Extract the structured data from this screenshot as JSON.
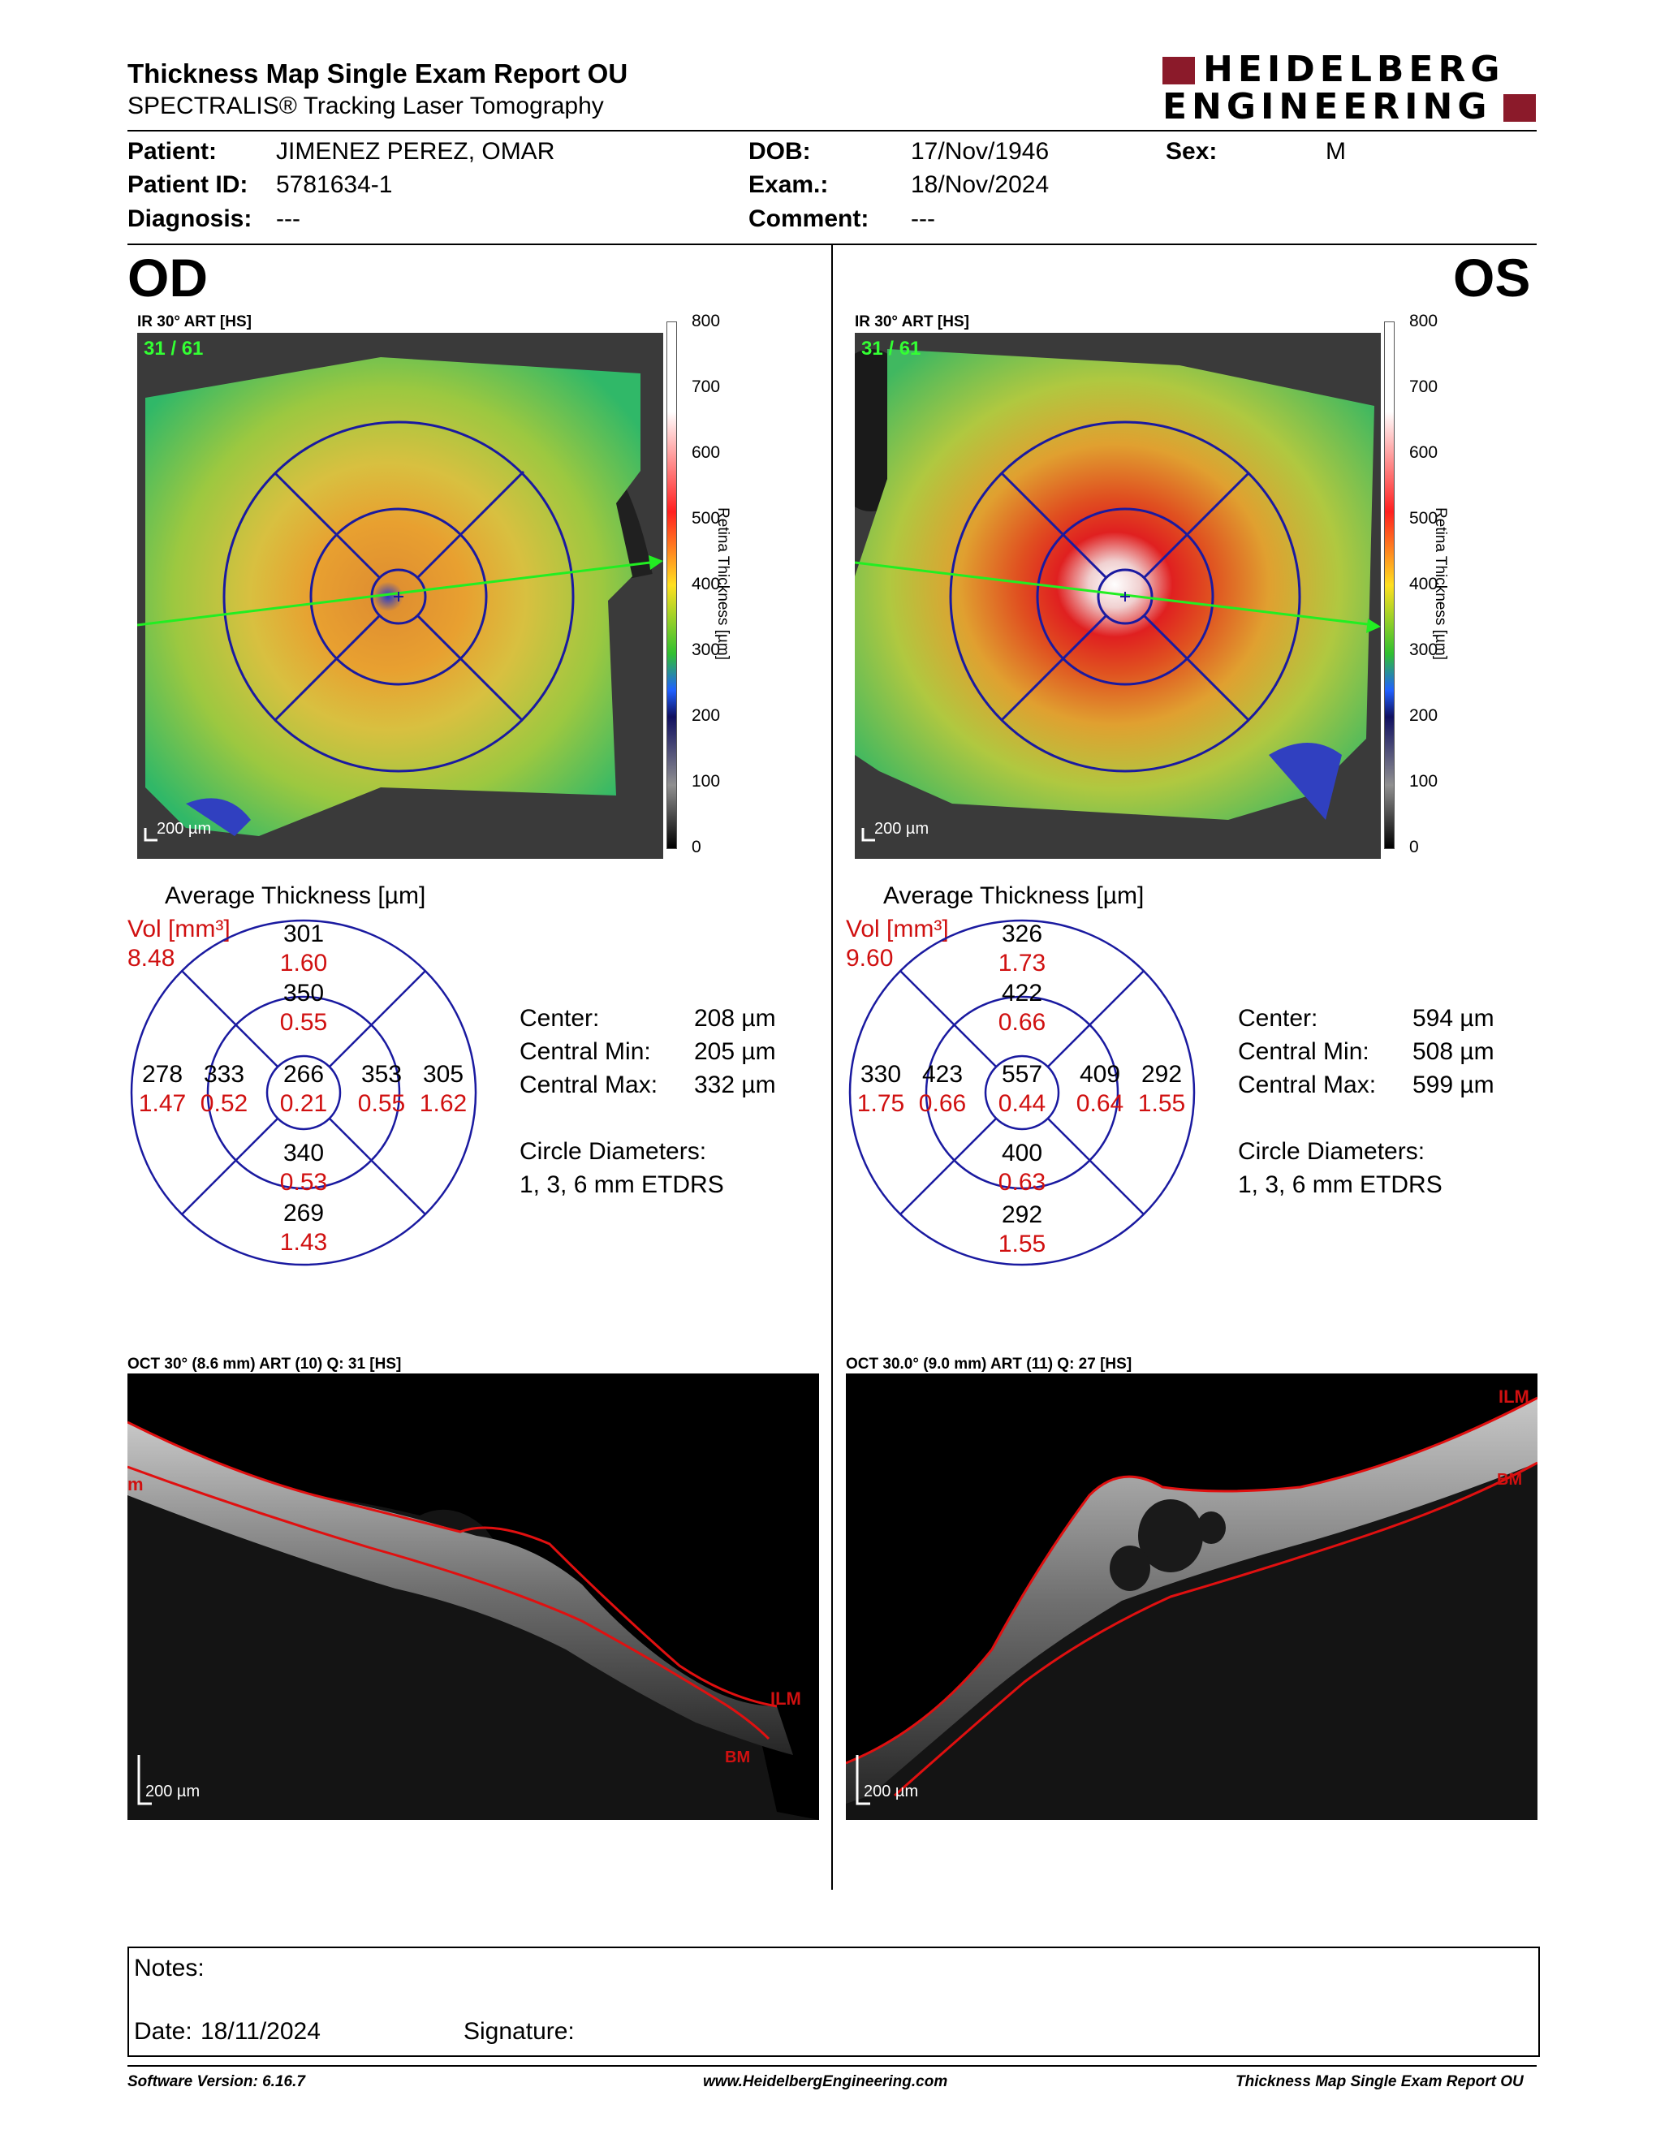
{
  "header": {
    "title": "Thickness Map Single Exam Report OU",
    "subtitle": "SPECTRALIS® Tracking Laser Tomography",
    "logo_line1": "HEIDELBERG",
    "logo_line2": "ENGINEERING",
    "brand_color": "#8b1a2a"
  },
  "patient": {
    "name_label": "Patient:",
    "name": "JIMENEZ PEREZ, OMAR",
    "id_label": "Patient ID:",
    "id": "5781634-1",
    "diagnosis_label": "Diagnosis:",
    "diagnosis": "---",
    "dob_label": "DOB:",
    "dob": "17/Nov/1946",
    "exam_label": "Exam.:",
    "exam": "18/Nov/2024",
    "comment_label": "Comment:",
    "comment": "---",
    "sex_label": "Sex:",
    "sex": "M"
  },
  "scale": {
    "label": "Retina Thickness [µm]",
    "ticks": [
      "800",
      "700",
      "600",
      "500",
      "400",
      "300",
      "200",
      "100",
      "0"
    ]
  },
  "od": {
    "eye": "OD",
    "fundus_title": "IR 30° ART [HS]",
    "frames": "31 / 61",
    "scalebar": "200 µm",
    "avg_title": "Average Thickness [µm]",
    "vol_label": "Vol [mm³]",
    "vol_total": "8.48",
    "sectors": {
      "outer_sup": {
        "t": "301",
        "v": "1.60"
      },
      "inner_sup": {
        "t": "350",
        "v": "0.55"
      },
      "outer_temp": {
        "t": "278",
        "v": "1.47"
      },
      "inner_temp": {
        "t": "333",
        "v": "0.52"
      },
      "center": {
        "t": "266",
        "v": "0.21"
      },
      "inner_nas": {
        "t": "353",
        "v": "0.55"
      },
      "outer_nas": {
        "t": "305",
        "v": "1.62"
      },
      "inner_inf": {
        "t": "340",
        "v": "0.53"
      },
      "outer_inf": {
        "t": "269",
        "v": "1.43"
      }
    },
    "center_label": "Center:",
    "center": "208 µm",
    "cmin_label": "Central Min:",
    "cmin": "205 µm",
    "cmax_label": "Central Max:",
    "cmax": "332 µm",
    "circle_label": "Circle Diameters:",
    "circle_value": "1, 3, 6 mm ETDRS",
    "oct_title": "OCT 30° (8.6 mm) ART (10) Q: 31 [HS]",
    "oct_scalebar": "200 µm",
    "ilm": "ILM",
    "bm": "BM",
    "ilm_edge": "m"
  },
  "os": {
    "eye": "OS",
    "fundus_title": "IR 30° ART [HS]",
    "frames": "31 / 61",
    "scalebar": "200 µm",
    "avg_title": "Average Thickness [µm]",
    "vol_label": "Vol [mm³]",
    "vol_total": "9.60",
    "sectors": {
      "outer_sup": {
        "t": "326",
        "v": "1.73"
      },
      "inner_sup": {
        "t": "422",
        "v": "0.66"
      },
      "outer_temp": {
        "t": "330",
        "v": "1.75"
      },
      "inner_temp": {
        "t": "423",
        "v": "0.66"
      },
      "center": {
        "t": "557",
        "v": "0.44"
      },
      "inner_nas": {
        "t": "409",
        "v": "0.64"
      },
      "outer_nas": {
        "t": "292",
        "v": "1.55"
      },
      "inner_inf": {
        "t": "400",
        "v": "0.63"
      },
      "outer_inf": {
        "t": "292",
        "v": "1.55"
      }
    },
    "center_label": "Center:",
    "center": "594 µm",
    "cmin_label": "Central Min:",
    "cmin": "508 µm",
    "cmax_label": "Central Max:",
    "cmax": "599 µm",
    "circle_label": "Circle Diameters:",
    "circle_value": "1, 3, 6 mm ETDRS",
    "oct_title": "OCT 30.0° (9.0 mm) ART (11) Q: 27 [HS]",
    "oct_scalebar": "200 µm",
    "ilm": "ILM",
    "bm": "BM"
  },
  "notes": {
    "notes_label": "Notes:",
    "date_label": "Date:",
    "date": "18/11/2024",
    "signature_label": "Signature:"
  },
  "footer": {
    "software": "Software Version: 6.16.7",
    "website": "www.HeidelbergEngineering.com",
    "report": "Thickness Map Single Exam Report OU"
  }
}
